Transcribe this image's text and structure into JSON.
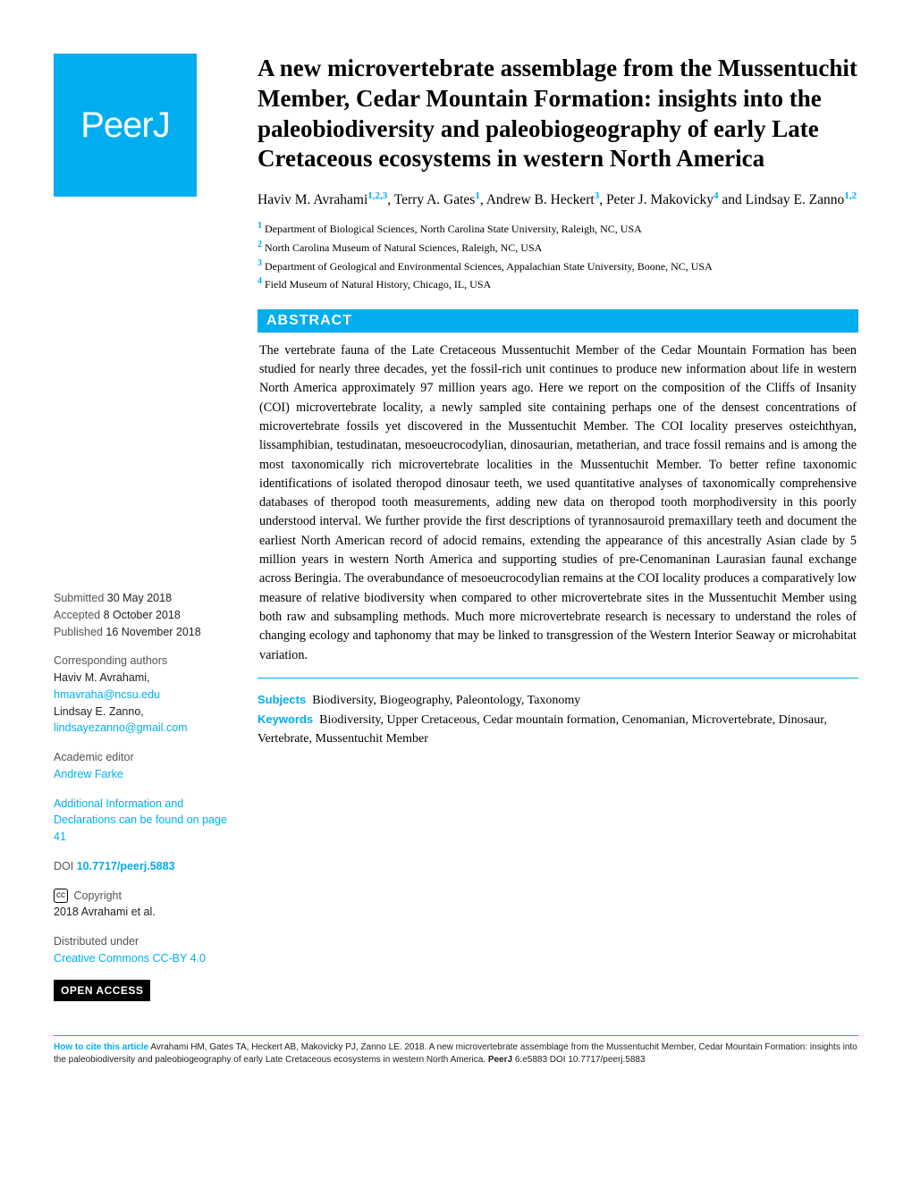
{
  "logo": "PeerJ",
  "title": "A new microvertebrate assemblage from the Mussentuchit Member, Cedar Mountain Formation: insights into the paleobiodiversity and paleobiogeography of early Late Cretaceous ecosystems in western North America",
  "authors_html": "Haviv M. Avrahami<sup>1,2,3</sup>, Terry A. Gates<sup>1</sup>, Andrew B. Heckert<sup>3</sup>, Peter J. Makovicky<sup>4</sup> and Lindsay E. Zanno<sup>1,2</sup>",
  "affiliations": [
    {
      "num": "1",
      "text": "Department of Biological Sciences, North Carolina State University, Raleigh, NC, USA"
    },
    {
      "num": "2",
      "text": "North Carolina Museum of Natural Sciences, Raleigh, NC, USA"
    },
    {
      "num": "3",
      "text": "Department of Geological and Environmental Sciences, Appalachian State University, Boone, NC, USA"
    },
    {
      "num": "4",
      "text": "Field Museum of Natural History, Chicago, IL, USA"
    }
  ],
  "abstract_label": "ABSTRACT",
  "abstract": "The vertebrate fauna of the Late Cretaceous Mussentuchit Member of the Cedar Mountain Formation has been studied for nearly three decades, yet the fossil-rich unit continues to produce new information about life in western North America approximately 97 million years ago. Here we report on the composition of the Cliffs of Insanity (COI) microvertebrate locality, a newly sampled site containing perhaps one of the densest concentrations of microvertebrate fossils yet discovered in the Mussentuchit Member. The COI locality preserves osteichthyan, lissamphibian, testudinatan, mesoeucrocodylian, dinosaurian, metatherian, and trace fossil remains and is among the most taxonomically rich microvertebrate localities in the Mussentuchit Member. To better refine taxonomic identifications of isolated theropod dinosaur teeth, we used quantitative analyses of taxonomically comprehensive databases of theropod tooth measurements, adding new data on theropod tooth morphodiversity in this poorly understood interval. We further provide the first descriptions of tyrannosauroid premaxillary teeth and document the earliest North American record of adocid remains, extending the appearance of this ancestrally Asian clade by 5 million years in western North America and supporting studies of pre-Cenomaninan Laurasian faunal exchange across Beringia. The overabundance of mesoeucrocodylian remains at the COI locality produces a comparatively low measure of relative biodiversity when compared to other microvertebrate sites in the Mussentuchit Member using both raw and subsampling methods. Much more microvertebrate research is necessary to understand the roles of changing ecology and taphonomy that may be linked to transgression of the Western Interior Seaway or microhabitat variation.",
  "subjects_label": "Subjects",
  "subjects": "Biodiversity, Biogeography, Paleontology, Taxonomy",
  "keywords_label": "Keywords",
  "keywords": "Biodiversity, Upper Cretaceous, Cedar mountain formation, Cenomanian, Microvertebrate, Dinosaur, Vertebrate, Mussentuchit Member",
  "sidebar": {
    "submitted_label": "Submitted",
    "submitted": "30 May 2018",
    "accepted_label": "Accepted",
    "accepted": "8 October 2018",
    "published_label": "Published",
    "published": "16 November 2018",
    "corresponding_label": "Corresponding authors",
    "corr1_name": "Haviv M. Avrahami,",
    "corr1_email": "hmavraha@ncsu.edu",
    "corr2_name": "Lindsay E. Zanno,",
    "corr2_email": "lindsayezanno@gmail.com",
    "editor_label": "Academic editor",
    "editor": "Andrew Farke",
    "decl_label": "Additional Information and Declarations can be found on page 41",
    "doi_label": "DOI",
    "doi": "10.7717/peerj.5883",
    "copyright_label": "Copyright",
    "copyright": "2018 Avrahami et al.",
    "dist_label": "Distributed under",
    "dist": "Creative Commons CC-BY 4.0",
    "open_access": "OPEN ACCESS"
  },
  "citation": {
    "label": "How to cite this article",
    "text": "Avrahami HM, Gates TA, Heckert AB, Makovicky PJ, Zanno LE. 2018. A new microvertebrate assemblage from the Mussentuchit Member, Cedar Mountain Formation: insights into the paleobiodiversity and paleobiogeography of early Late Cretaceous ecosystems in western North America.",
    "journal": "PeerJ",
    "ref": "6:e5883 DOI 10.7717/peerj.5883"
  },
  "colors": {
    "brand": "#00aeef",
    "text": "#000000",
    "bg": "#ffffff"
  }
}
